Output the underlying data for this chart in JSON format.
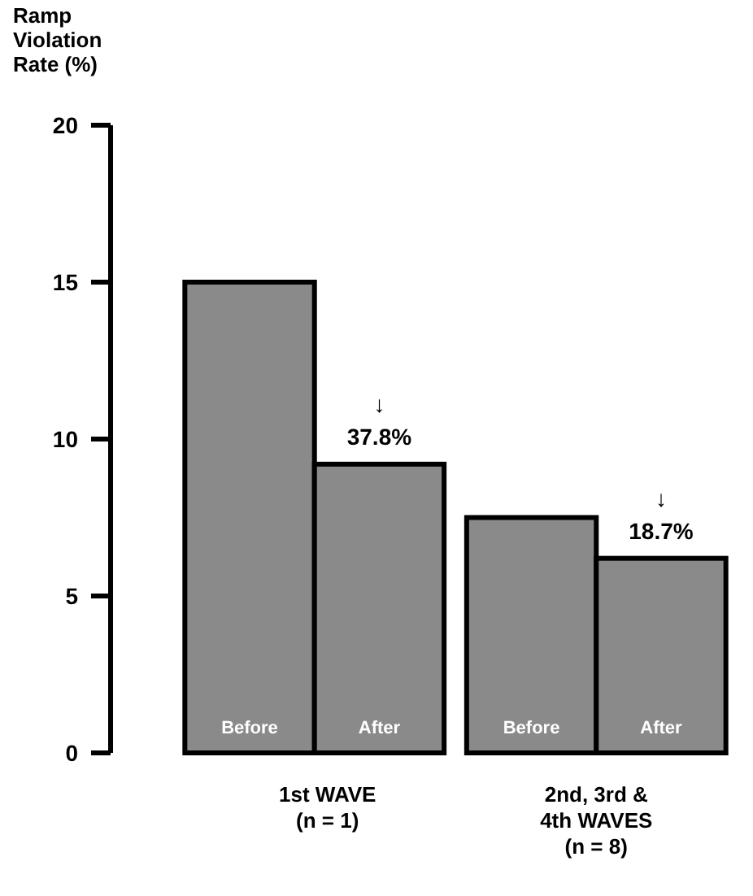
{
  "chart_data": {
    "type": "bar",
    "ylabel": "Ramp\nViolation\nRate (%)",
    "categories": [
      "1st WAVE\n(n = 1)",
      "2nd, 3rd &\n4th WAVES\n(n = 8)"
    ],
    "series": [
      {
        "name": "Before",
        "color": "#8a8a8a",
        "values": [
          15.0,
          7.5
        ]
      },
      {
        "name": "After",
        "color": "#8a8a8a",
        "values": [
          9.2,
          6.2
        ]
      }
    ],
    "ylim": [
      0,
      20
    ],
    "yticks": [
      0,
      5,
      10,
      15,
      20
    ],
    "grid": false,
    "annotations": [
      "↓\n37.8%",
      "↓\n18.7%"
    ]
  }
}
